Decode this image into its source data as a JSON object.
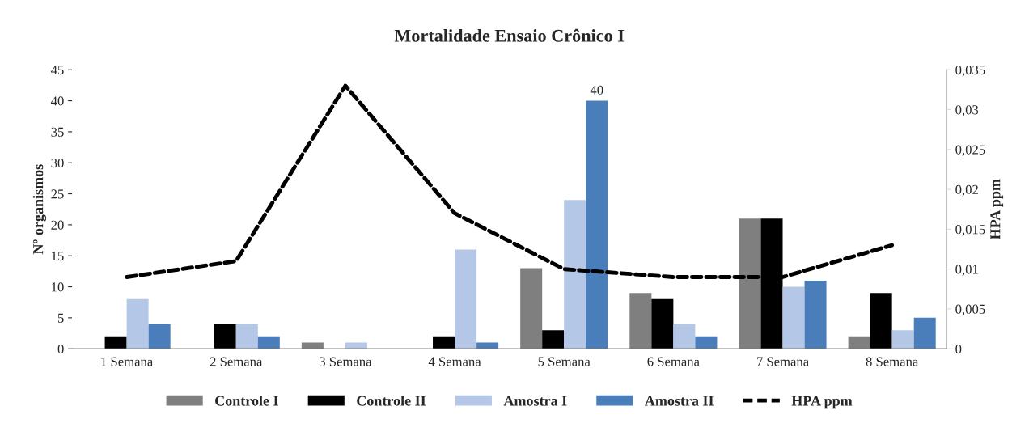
{
  "chart_data": {
    "type": "bar",
    "title": "Mortalidade Ensaio Crônico I",
    "ylabel": "Nº organismos",
    "y2label": "HPA ppm",
    "categories": [
      "1 Semana",
      "2 Semana",
      "3 Semana",
      "4 Semana",
      "5 Semana",
      "6 Semana",
      "7 Semana",
      "8 Semana"
    ],
    "series": [
      {
        "name": "Controle I",
        "color": "#7f7f7f",
        "values": [
          0,
          0,
          1,
          0,
          13,
          9,
          21,
          2
        ]
      },
      {
        "name": "Controle II",
        "color": "#000000",
        "values": [
          2,
          4,
          0,
          2,
          3,
          8,
          21,
          9
        ]
      },
      {
        "name": "Amostra I",
        "color": "#b4c7e7",
        "values": [
          8,
          4,
          1,
          16,
          24,
          4,
          10,
          3
        ]
      },
      {
        "name": "Amostra II",
        "color": "#4a7ebb",
        "values": [
          4,
          2,
          0,
          1,
          40,
          2,
          11,
          5
        ],
        "value_labels": [
          null,
          null,
          null,
          null,
          "40",
          null,
          null,
          null
        ]
      },
      {
        "name": "HPA ppm",
        "type": "line",
        "axis": "y2",
        "color": "#000000",
        "line_style": "dashed",
        "values": [
          0.009,
          0.011,
          0.033,
          0.017,
          0.01,
          0.009,
          0.009,
          0.013
        ]
      }
    ],
    "ylim": [
      0,
      45
    ],
    "yticks": [
      0,
      5,
      10,
      15,
      20,
      25,
      30,
      35,
      40,
      45
    ],
    "y2lim": [
      0,
      0.035
    ],
    "y2ticks": [
      0,
      {
        "value": 0.005,
        "label": "0,005"
      },
      {
        "value": 0.01,
        "label": "0,01"
      },
      {
        "value": 0.015,
        "label": "0,015"
      },
      {
        "value": 0.02,
        "label": "0,02"
      },
      {
        "value": 0.025,
        "label": "0,025"
      },
      {
        "value": 0.03,
        "label": "0,03"
      },
      {
        "value": 0.035,
        "label": "0,035"
      }
    ],
    "legend": "bottom",
    "grid": false
  }
}
